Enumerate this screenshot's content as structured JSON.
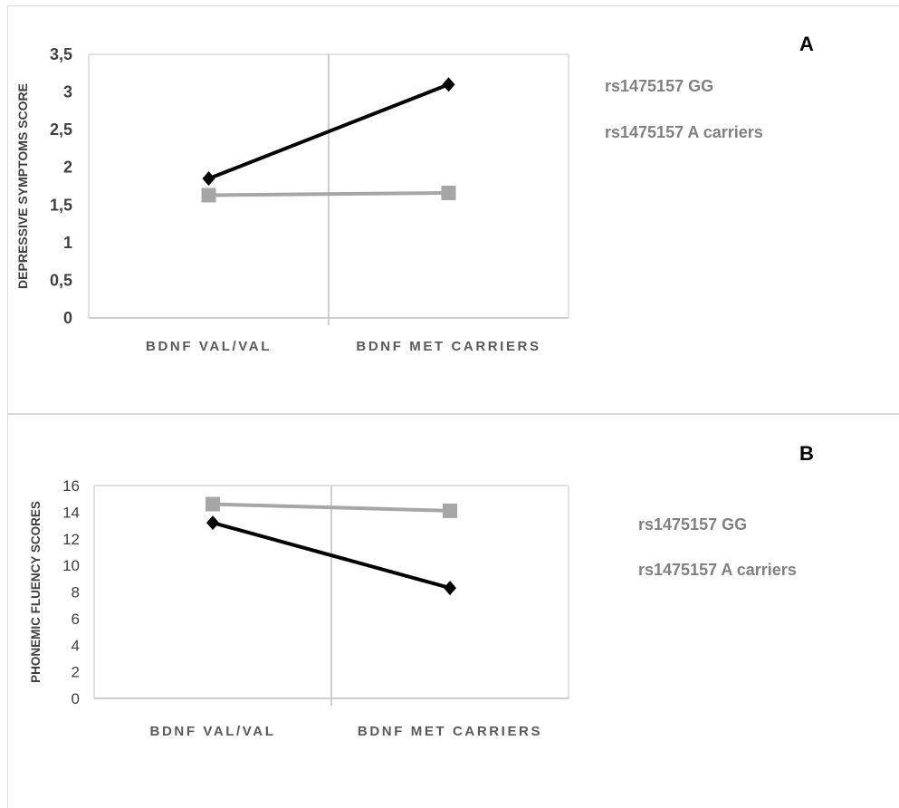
{
  "chart_data": [
    {
      "type": "line",
      "panel_label": "A",
      "categories": [
        "BDNF VAL/VAL",
        "BDNF MET CARRIERS"
      ],
      "ylabel": "DEPRESSIVE SYMPTOMS SCORE",
      "ylim": [
        0,
        3.5
      ],
      "yticks": [
        "0",
        "0,5",
        "1",
        "1,5",
        "2",
        "2,5",
        "3",
        "3,5"
      ],
      "grid": false,
      "legend_position": "right",
      "series": [
        {
          "name": "rs1475157 GG",
          "values": [
            1.85,
            3.1
          ],
          "color": "#000000",
          "marker": "diamond"
        },
        {
          "name": "rs1475157 A carriers",
          "values": [
            1.63,
            1.66
          ],
          "color": "#a6a6a6",
          "marker": "square"
        }
      ]
    },
    {
      "type": "line",
      "panel_label": "B",
      "categories": [
        "BDNF VAL/VAL",
        "BDNF MET CARRIERS"
      ],
      "ylabel": "PHONEMIC FLUENCY SCORES",
      "ylim": [
        0,
        16
      ],
      "yticks": [
        "0",
        "2",
        "4",
        "6",
        "8",
        "10",
        "12",
        "14",
        "16"
      ],
      "grid": false,
      "legend_position": "right",
      "series": [
        {
          "name": "rs1475157 GG",
          "values": [
            14.6,
            14.1
          ],
          "color": "#a6a6a6",
          "marker": "square"
        },
        {
          "name": "rs1475157 A carriers",
          "values": [
            13.2,
            8.3
          ],
          "color": "#000000",
          "marker": "diamond"
        }
      ]
    }
  ]
}
